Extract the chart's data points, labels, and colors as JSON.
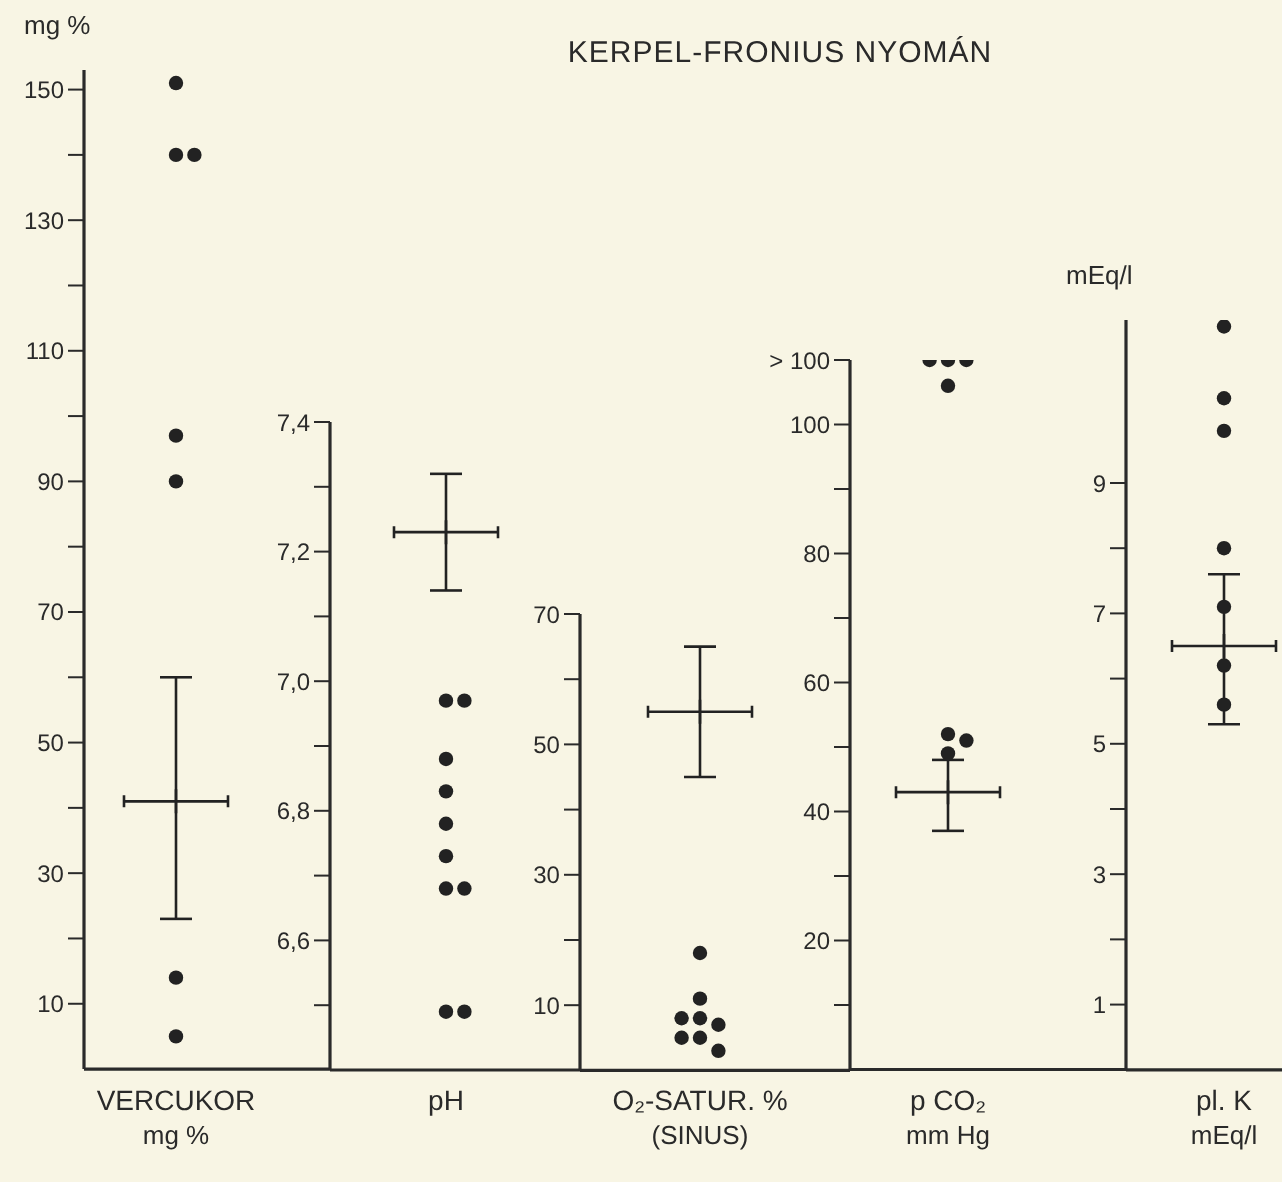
{
  "chart_data": [
    {
      "type": "scatter",
      "categories": [
        "VERCUKOR\nmg %"
      ],
      "ylabel": "mg %",
      "ylim": [
        0,
        153
      ],
      "yticks": [
        10,
        {
          "value": 20,
          "label": null
        },
        30,
        {
          "value": 40,
          "label": null
        },
        50,
        {
          "value": 60,
          "label": null
        },
        70,
        {
          "value": 80,
          "label": null
        },
        90,
        {
          "value": 100,
          "label": null
        },
        110,
        {
          "value": 120,
          "label": null
        },
        130,
        {
          "value": 140,
          "label": null
        },
        150
      ],
      "series": [
        {
          "color": "#222222",
          "marker": "circle",
          "x": [
            "VERCUKOR\nmg %",
            "VERCUKOR\nmg %",
            "VERCUKOR\nmg %",
            "VERCUKOR\nmg %",
            "VERCUKOR\nmg %",
            "VERCUKOR\nmg %",
            "VERCUKOR\nmg %"
          ],
          "values": [
            151,
            140,
            140,
            97,
            90,
            14,
            5
          ]
        },
        {
          "color": "#222222",
          "marker": "cross",
          "x": [
            "VERCUKOR\nmg %"
          ],
          "values": [
            41
          ],
          "errors": [
            [
              23,
              60
            ]
          ]
        }
      ]
    },
    {
      "type": "scatter",
      "categories": [
        "pH"
      ],
      "ylim": [
        6.4,
        7.4
      ],
      "yticks": [
        {
          "value": 6.5,
          "label": null
        },
        {
          "value": 6.6,
          "label": "6,6"
        },
        {
          "value": 6.7,
          "label": null
        },
        {
          "value": 6.8,
          "label": "6,8"
        },
        {
          "value": 6.9,
          "label": null
        },
        {
          "value": 7.0,
          "label": "7,0"
        },
        {
          "value": 7.1,
          "label": null
        },
        {
          "value": 7.2,
          "label": "7,2"
        },
        {
          "value": 7.3,
          "label": null
        },
        {
          "value": 7.4,
          "label": "7,4"
        }
      ],
      "series": [
        {
          "color": "#222222",
          "marker": "circle",
          "x": [
            "pH",
            "pH",
            "pH",
            "pH",
            "pH",
            "pH",
            "pH",
            "pH",
            "pH",
            "pH"
          ],
          "values": [
            6.97,
            6.97,
            6.88,
            6.83,
            6.78,
            6.73,
            6.68,
            6.68,
            6.49,
            6.49
          ]
        },
        {
          "color": "#222222",
          "marker": "cross",
          "x": [
            "pH"
          ],
          "values": [
            7.23
          ],
          "errors": [
            [
              7.14,
              7.32
            ]
          ]
        }
      ]
    },
    {
      "type": "scatter",
      "title": "KERPEL-FRONIUS NYOMÁN",
      "categories": [
        "O₂-SATUR. %\n(SINUS)"
      ],
      "ylim": [
        0,
        70
      ],
      "yticks": [
        10,
        {
          "value": 20,
          "label": null
        },
        30,
        {
          "value": 40,
          "label": null
        },
        50,
        {
          "value": 60,
          "label": null
        },
        70
      ],
      "series": [
        {
          "color": "#222222",
          "marker": "circle",
          "x": [
            "O₂-SATUR. %\n(SINUS)",
            "O₂-SATUR. %\n(SINUS)",
            "O₂-SATUR. %\n(SINUS)",
            "O₂-SATUR. %\n(SINUS)",
            "O₂-SATUR. %\n(SINUS)",
            "O₂-SATUR. %\n(SINUS)",
            "O₂-SATUR. %\n(SINUS)",
            "O₂-SATUR. %\n(SINUS)"
          ],
          "values": [
            18,
            11,
            8,
            7,
            8,
            5,
            5,
            3
          ]
        },
        {
          "color": "#222222",
          "marker": "cross",
          "x": [
            "O₂-SATUR. %\n(SINUS)"
          ],
          "values": [
            55
          ],
          "errors": [
            [
              45,
              65
            ]
          ]
        }
      ]
    },
    {
      "type": "scatter",
      "categories": [
        "p CO₂\nmm Hg"
      ],
      "ylim": [
        0,
        110
      ],
      "yticks": [
        {
          "value": 10,
          "label": null
        },
        20,
        {
          "value": 30,
          "label": null
        },
        40,
        {
          "value": 50,
          "label": null
        },
        60,
        {
          "value": 70,
          "label": null
        },
        80,
        {
          "value": 90,
          "label": null
        },
        100,
        {
          "value": 110,
          "label": "> 100"
        }
      ],
      "series": [
        {
          "color": "#222222",
          "marker": "circle",
          "x": [
            "p CO₂\nmm Hg",
            "p CO₂\nmm Hg",
            "p CO₂\nmm Hg",
            "p CO₂\nmm Hg",
            "p CO₂\nmm Hg",
            "p CO₂\nmm Hg",
            "p CO₂\nmm Hg"
          ],
          "values": [
            110,
            110,
            110,
            106,
            52,
            51,
            49
          ]
        },
        {
          "color": "#222222",
          "marker": "cross",
          "x": [
            "p CO₂\nmm Hg"
          ],
          "values": [
            43
          ],
          "errors": [
            [
              37,
              48
            ]
          ]
        }
      ]
    },
    {
      "type": "scatter",
      "categories": [
        "pl. K\nmEq/l"
      ],
      "ylabel": "mEq/l",
      "ylim": [
        0,
        11.5
      ],
      "yticks": [
        1,
        {
          "value": 2,
          "label": null
        },
        3,
        {
          "value": 4,
          "label": null
        },
        5,
        {
          "value": 6,
          "label": null
        },
        7,
        {
          "value": 8,
          "label": null
        },
        9
      ],
      "series": [
        {
          "color": "#222222",
          "marker": "circle",
          "x": [
            "pl. K\nmEq/l",
            "pl. K\nmEq/l",
            "pl. K\nmEq/l",
            "pl. K\nmEq/l",
            "pl. K\nmEq/l",
            "pl. K\nmEq/l",
            "pl. K\nmEq/l"
          ],
          "values": [
            11.4,
            10.3,
            9.8,
            8.0,
            7.1,
            6.2,
            5.6
          ]
        },
        {
          "color": "#222222",
          "marker": "cross",
          "x": [
            "pl. K\nmEq/l"
          ],
          "values": [
            6.5
          ],
          "errors": [
            [
              5.3,
              7.6
            ]
          ]
        }
      ]
    }
  ]
}
